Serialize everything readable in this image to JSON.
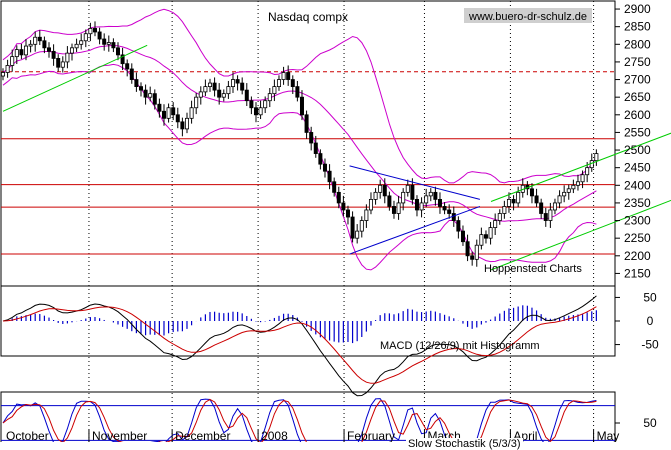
{
  "chart_data": [
    {
      "type": "candlestick",
      "title": "Nasdaq compx",
      "watermark": "www.buero-dr-schulz.de",
      "annotation": "Hoppenstedt Charts",
      "ylim": [
        2120,
        2920
      ],
      "yticks": [
        2150,
        2200,
        2250,
        2300,
        2350,
        2400,
        2450,
        2500,
        2550,
        2600,
        2650,
        2700,
        2750,
        2800,
        2850,
        2900
      ],
      "months": [
        {
          "label": "October",
          "day": 0
        },
        {
          "label": "November",
          "day": 31
        },
        {
          "label": "December",
          "day": 61
        },
        {
          "label": "2008",
          "day": 92
        },
        {
          "label": "February",
          "day": 123
        },
        {
          "label": "March",
          "day": 152
        },
        {
          "label": "April",
          "day": 183
        },
        {
          "label": "May",
          "day": 213
        }
      ],
      "closes": [
        2720,
        2740,
        2765,
        2785,
        2770,
        2795,
        2800,
        2820,
        2810,
        2790,
        2780,
        2760,
        2735,
        2750,
        2775,
        2790,
        2800,
        2810,
        2830,
        2845,
        2835,
        2815,
        2800,
        2805,
        2790,
        2770,
        2745,
        2730,
        2700,
        2680,
        2670,
        2650,
        2660,
        2630,
        2610,
        2590,
        2620,
        2600,
        2580,
        2560,
        2590,
        2620,
        2650,
        2665,
        2680,
        2690,
        2670,
        2650,
        2660,
        2680,
        2700,
        2690,
        2670,
        2640,
        2620,
        2600,
        2620,
        2640,
        2660,
        2680,
        2700,
        2720,
        2700,
        2680,
        2650,
        2600,
        2550,
        2520,
        2490,
        2460,
        2440,
        2410,
        2380,
        2350,
        2330,
        2310,
        2250,
        2270,
        2300,
        2330,
        2360,
        2380,
        2400,
        2370,
        2340,
        2320,
        2350,
        2380,
        2400,
        2360,
        2330,
        2350,
        2370,
        2380,
        2360,
        2340,
        2330,
        2320,
        2300,
        2270,
        2240,
        2200,
        2190,
        2230,
        2260,
        2250,
        2280,
        2300,
        2320,
        2340,
        2360,
        2350,
        2380,
        2400,
        2390,
        2370,
        2350,
        2320,
        2300,
        2330,
        2350,
        2370,
        2380,
        2390,
        2400,
        2410,
        2430,
        2450,
        2470,
        2490
      ],
      "horizontal_levels": [
        2205,
        2338,
        2402,
        2532
      ],
      "dashed_level": 2722,
      "trendlines": [
        {
          "color": "#00cc00",
          "d0": 0,
          "v0": 2610,
          "d1": 52,
          "v1": 2797
        },
        {
          "color": "#0000cc",
          "d0": 125,
          "v0": 2455,
          "d1": 172,
          "v1": 2360
        },
        {
          "color": "#0000cc",
          "d0": 125,
          "v0": 2205,
          "d1": 172,
          "v1": 2340
        },
        {
          "color": "#00cc00",
          "d0": 176,
          "v0": 2354,
          "d1": 255,
          "v1": 2590
        },
        {
          "color": "#00cc00",
          "d0": 176,
          "v0": 2160,
          "d1": 255,
          "v1": 2400
        }
      ]
    },
    {
      "type": "line",
      "title": "MACD (12/26/9) mit Histogramm",
      "ylim": [
        -70,
        70
      ],
      "yticks": [
        50,
        0,
        -50
      ]
    },
    {
      "type": "line",
      "title": "Slow Stochastik (5/3/3)",
      "ylim": [
        0,
        100
      ],
      "yticks": [
        50
      ],
      "levels": [
        80,
        20
      ]
    }
  ]
}
